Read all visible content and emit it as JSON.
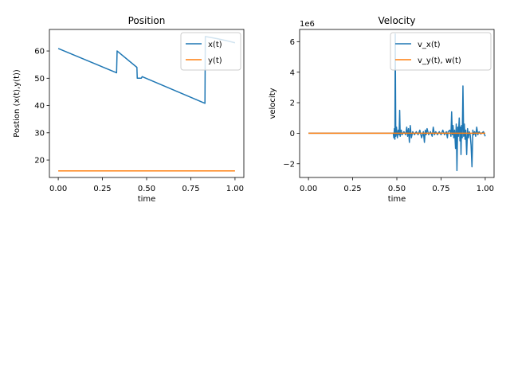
{
  "figure": {
    "background": "#ffffff"
  },
  "chart_data": [
    {
      "type": "line",
      "title": "Position",
      "xlabel": "time",
      "ylabel": "Postion (x(t),y(t))",
      "xlim": [
        -0.05,
        1.05
      ],
      "ylim": [
        13.6,
        67.9
      ],
      "xticks": [
        0.0,
        0.25,
        0.5,
        0.75,
        1.0
      ],
      "xtick_labels": [
        "0.00",
        "0.25",
        "0.50",
        "0.75",
        "1.00"
      ],
      "yticks": [
        20,
        30,
        40,
        50,
        60
      ],
      "ytick_labels": [
        "20",
        "30",
        "40",
        "50",
        "60"
      ],
      "grid": false,
      "legend_position": "top-right",
      "series": [
        {
          "name": "x(t)",
          "color": "#1f77b4",
          "points": [
            [
              0.0,
              60.9
            ],
            [
              0.33,
              52.0
            ],
            [
              0.333,
              60.0
            ],
            [
              0.445,
              54.0
            ],
            [
              0.447,
              50.0
            ],
            [
              0.47,
              50.0
            ],
            [
              0.475,
              50.6
            ],
            [
              0.83,
              40.8
            ],
            [
              0.832,
              65.3
            ],
            [
              0.9,
              64.5
            ],
            [
              0.95,
              63.8
            ],
            [
              1.0,
              63.0
            ]
          ]
        },
        {
          "name": "y(t)",
          "color": "#ff7f0e",
          "points": [
            [
              0.0,
              16.0
            ],
            [
              1.0,
              16.0
            ]
          ]
        }
      ]
    },
    {
      "type": "line",
      "title": "Velocity",
      "xlabel": "time",
      "ylabel": "velocity",
      "y_offset_label": "1e6",
      "xlim": [
        -0.05,
        1.05
      ],
      "ylim": [
        -2.9,
        6.8
      ],
      "xticks": [
        0.0,
        0.25,
        0.5,
        0.75,
        1.0
      ],
      "xtick_labels": [
        "0.00",
        "0.25",
        "0.50",
        "0.75",
        "1.00"
      ],
      "yticks": [
        -2,
        0,
        2,
        4,
        6
      ],
      "ytick_labels": [
        "−2",
        "0",
        "2",
        "4",
        "6"
      ],
      "grid": false,
      "legend_position": "top-right",
      "series": [
        {
          "name": "v_x(t)",
          "color": "#1f77b4",
          "points": [
            [
              0.0,
              0.0
            ],
            [
              0.48,
              0.0
            ],
            [
              0.483,
              -0.3
            ],
            [
              0.486,
              0.3
            ],
            [
              0.489,
              -0.4
            ],
            [
              0.491,
              6.5
            ],
            [
              0.494,
              -0.2
            ],
            [
              0.498,
              0.4
            ],
            [
              0.503,
              -0.3
            ],
            [
              0.508,
              0.2
            ],
            [
              0.513,
              -0.1
            ],
            [
              0.516,
              1.5
            ],
            [
              0.519,
              -0.2
            ],
            [
              0.525,
              0.2
            ],
            [
              0.53,
              -0.1
            ],
            [
              0.54,
              0.1
            ],
            [
              0.55,
              -0.1
            ],
            [
              0.556,
              0.4
            ],
            [
              0.561,
              -0.2
            ],
            [
              0.566,
              0.3
            ],
            [
              0.571,
              -0.6
            ],
            [
              0.576,
              0.5
            ],
            [
              0.582,
              -0.3
            ],
            [
              0.59,
              0.1
            ],
            [
              0.6,
              -0.1
            ],
            [
              0.61,
              0.1
            ],
            [
              0.62,
              -0.1
            ],
            [
              0.63,
              0.2
            ],
            [
              0.64,
              -0.3
            ],
            [
              0.65,
              0.1
            ],
            [
              0.656,
              -0.6
            ],
            [
              0.661,
              0.2
            ],
            [
              0.666,
              -0.1
            ],
            [
              0.671,
              0.3
            ],
            [
              0.68,
              -0.1
            ],
            [
              0.69,
              0.1
            ],
            [
              0.7,
              -0.2
            ],
            [
              0.706,
              0.4
            ],
            [
              0.713,
              -0.1
            ],
            [
              0.72,
              0.1
            ],
            [
              0.73,
              -0.1
            ],
            [
              0.74,
              0.1
            ],
            [
              0.75,
              -0.1
            ],
            [
              0.76,
              0.2
            ],
            [
              0.77,
              -0.1
            ],
            [
              0.78,
              0.1
            ],
            [
              0.786,
              -0.3
            ],
            [
              0.79,
              0.1
            ],
            [
              0.8,
              0.2
            ],
            [
              0.806,
              -0.2
            ],
            [
              0.81,
              1.4
            ],
            [
              0.814,
              -0.1
            ],
            [
              0.818,
              0.5
            ],
            [
              0.822,
              -0.3
            ],
            [
              0.827,
              0.2
            ],
            [
              0.832,
              -1.0
            ],
            [
              0.836,
              0.6
            ],
            [
              0.84,
              -2.45
            ],
            [
              0.844,
              0.4
            ],
            [
              0.848,
              -0.2
            ],
            [
              0.853,
              1.0
            ],
            [
              0.857,
              -0.5
            ],
            [
              0.86,
              0.4
            ],
            [
              0.863,
              -1.4
            ],
            [
              0.866,
              0.5
            ],
            [
              0.87,
              -0.3
            ],
            [
              0.874,
              3.1
            ],
            [
              0.878,
              -0.2
            ],
            [
              0.882,
              0.6
            ],
            [
              0.886,
              -0.4
            ],
            [
              0.89,
              0.2
            ],
            [
              0.895,
              -1.4
            ],
            [
              0.9,
              0.3
            ],
            [
              0.905,
              -0.3
            ],
            [
              0.91,
              0.1
            ],
            [
              0.915,
              -0.1
            ],
            [
              0.92,
              -0.8
            ],
            [
              0.925,
              -2.2
            ],
            [
              0.93,
              0.2
            ],
            [
              0.935,
              -0.1
            ],
            [
              0.94,
              0.1
            ],
            [
              0.946,
              -0.2
            ],
            [
              0.952,
              0.4
            ],
            [
              0.958,
              -0.1
            ],
            [
              0.965,
              0.1
            ],
            [
              0.975,
              -0.05
            ],
            [
              0.99,
              0.1
            ],
            [
              1.0,
              -0.2
            ]
          ]
        },
        {
          "name": "v_y(t), w(t)",
          "color": "#ff7f0e",
          "points": [
            [
              0.0,
              0.0
            ],
            [
              1.0,
              0.0
            ]
          ]
        }
      ]
    }
  ]
}
